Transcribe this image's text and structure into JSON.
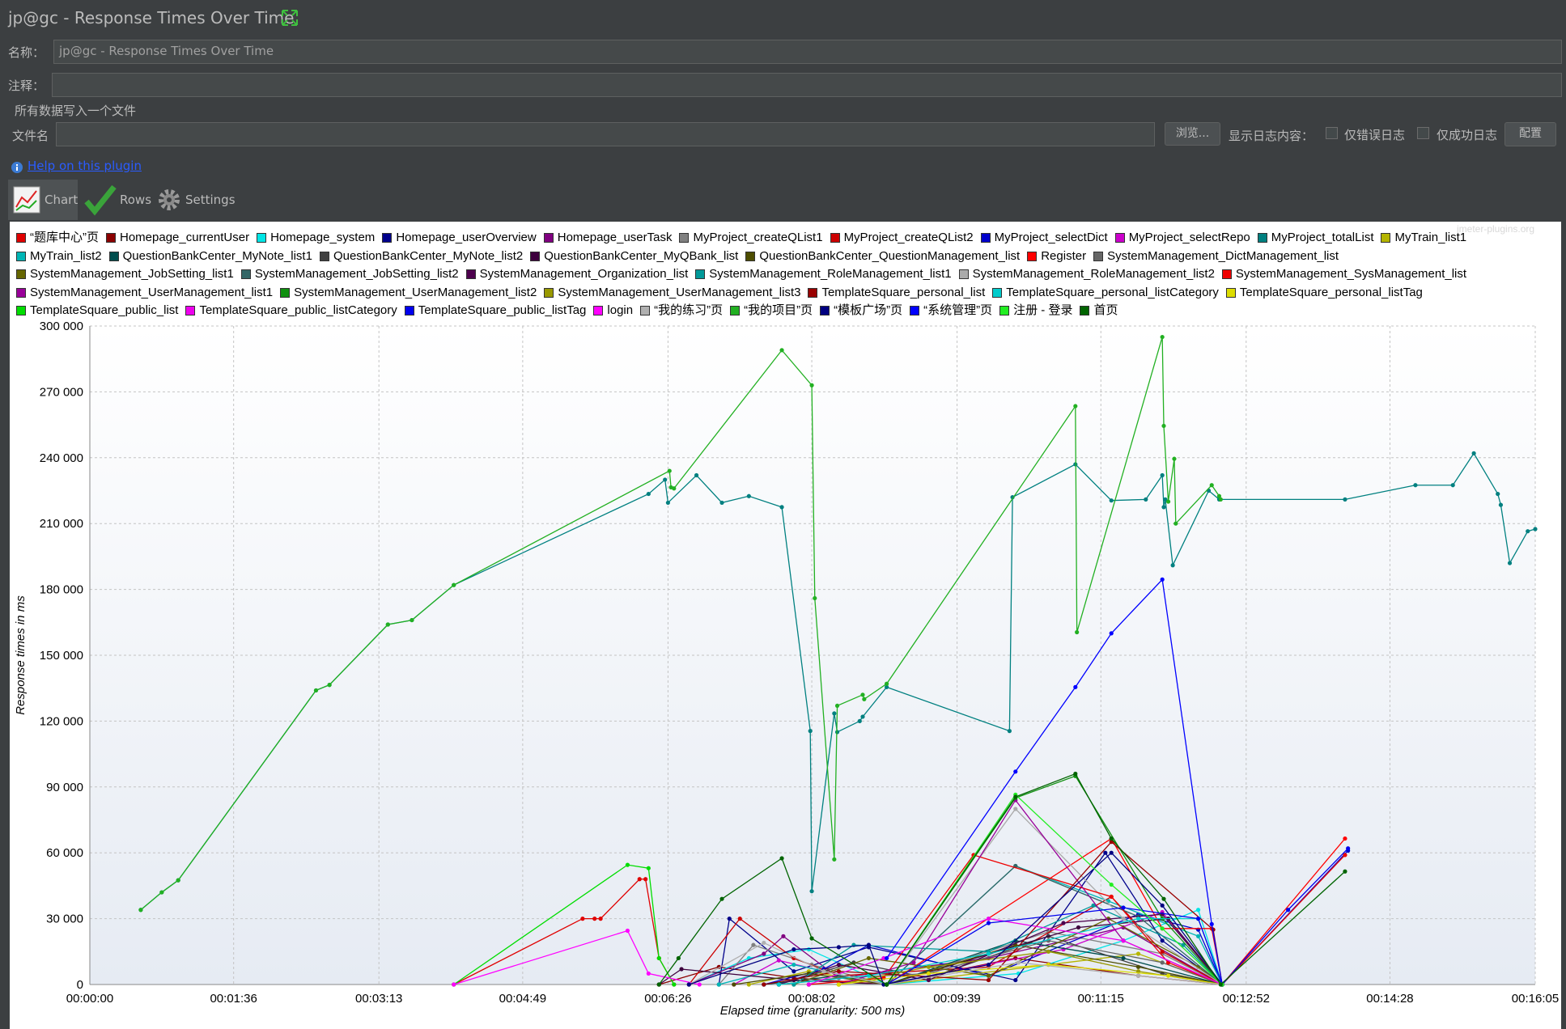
{
  "window": {
    "title": "jp@gc - Response Times Over Time",
    "name_label": "名称：",
    "name_value": "jp@gc - Response Times Over Time",
    "comment_label": "注释：",
    "file_group": "所有数据写入一个文件",
    "file_label": "文件名",
    "browse": "浏览...",
    "log_label": "显示日志内容：",
    "errors_only": "仅错误日志",
    "success_only": "仅成功日志",
    "configure": "配置",
    "help": "Help on this plugin",
    "tabs": [
      "Chart",
      "Rows",
      "Settings"
    ]
  },
  "chart_data": {
    "type": "line",
    "watermark": "jmeter-plugins.org",
    "x_label": "Elapsed time (granularity: 500 ms)",
    "y_label": "Response times in ms",
    "grid": true,
    "xlim": [
      0,
      965
    ],
    "xticks": [
      {
        "value": 0,
        "label": "00:00:00"
      },
      {
        "value": 96,
        "label": "00:01:36"
      },
      {
        "value": 193,
        "label": "00:03:13"
      },
      {
        "value": 289,
        "label": "00:04:49"
      },
      {
        "value": 386,
        "label": "00:06:26"
      },
      {
        "value": 482,
        "label": "00:08:02"
      },
      {
        "value": 579,
        "label": "00:09:39"
      },
      {
        "value": 675,
        "label": "00:11:15"
      },
      {
        "value": 772,
        "label": "00:12:52"
      },
      {
        "value": 868,
        "label": "00:14:28"
      },
      {
        "value": 965,
        "label": "00:16:05"
      }
    ],
    "ylim": [
      0,
      300000
    ],
    "yticks": [
      0,
      {
        "value": 30000,
        "label": "30 000"
      },
      {
        "value": 60000,
        "label": "60 000"
      },
      {
        "value": 90000,
        "label": "90 000"
      },
      {
        "value": 120000,
        "label": "120 000"
      },
      {
        "value": 150000,
        "label": "150 000"
      },
      {
        "value": 180000,
        "label": "180 000"
      },
      {
        "value": 210000,
        "label": "210 000"
      },
      {
        "value": 240000,
        "label": "240 000"
      },
      {
        "value": 270000,
        "label": "270 000"
      },
      {
        "value": 300000,
        "label": "300 000"
      }
    ],
    "series": [
      {
        "name": "“题库中心”页",
        "color": "#e00000",
        "x": [
          243,
          329,
          337,
          341,
          367,
          371,
          380,
          390
        ],
        "values": [
          0,
          30000,
          30000,
          30000,
          48000,
          48000,
          12000,
          0
        ]
      },
      {
        "name": "Homepage_currentUser",
        "color": "#8b0000",
        "x": [
          380,
          420,
          470,
          532,
          618,
          700,
          756
        ],
        "values": [
          0,
          8000,
          3000,
          0,
          12000,
          4000,
          0
        ]
      },
      {
        "name": "Homepage_system",
        "color": "#00e5e5",
        "x": [
          400,
          440,
          480,
          532,
          620,
          690,
          740,
          756
        ],
        "values": [
          0,
          12000,
          16000,
          0,
          5000,
          20000,
          34000,
          0
        ]
      },
      {
        "name": "Homepage_userOverview",
        "color": "#00008b",
        "x": [
          420,
          427,
          470,
          520,
          618,
          678,
          716,
          756
        ],
        "values": [
          0,
          30000,
          6000,
          17000,
          2000,
          60000,
          20000,
          0
        ]
      },
      {
        "name": "Homepage_userTask",
        "color": "#800080",
        "x": [
          400,
          450,
          463,
          500,
          600,
          690,
          756
        ],
        "values": [
          0,
          14000,
          22000,
          3000,
          12000,
          26000,
          0
        ]
      },
      {
        "name": "MyProject_createQList1",
        "color": "#808080",
        "x": [
          420,
          443,
          482,
          532,
          640,
          716,
          756
        ],
        "values": [
          0,
          18000,
          9000,
          0,
          24000,
          14000,
          0
        ]
      },
      {
        "name": "MyProject_createQList2",
        "color": "#cc0000",
        "x": [
          400,
          434,
          470,
          500,
          600,
          682,
          716,
          756
        ],
        "values": [
          0,
          30000,
          12000,
          4000,
          8000,
          40000,
          15000,
          0
        ]
      },
      {
        "name": "MyProject_selectDict",
        "color": "#0000cc",
        "x": [
          450,
          490,
          520,
          600,
          700,
          740,
          756,
          840
        ],
        "values": [
          0,
          7000,
          18000,
          4000,
          32000,
          25000,
          0,
          61000
        ]
      },
      {
        "name": "MyProject_selectRepo",
        "color": "#cc00cc",
        "x": [
          430,
          460,
          490,
          532,
          650,
          716,
          756
        ],
        "values": [
          0,
          11000,
          6000,
          0,
          16000,
          33000,
          0
        ]
      },
      {
        "name": "MyProject_totalList",
        "color": "#008080",
        "x": [
          34,
          48,
          59,
          151,
          160,
          199,
          215,
          243,
          373,
          384,
          386,
          405,
          422,
          440,
          462,
          481,
          482,
          497,
          499,
          514,
          516,
          532,
          614,
          616,
          658,
          682,
          705,
          716,
          717,
          718,
          723,
          747,
          754,
          838,
          885,
          910,
          924,
          940,
          942,
          948,
          960,
          965
        ],
        "values": [
          34000,
          42000,
          47500,
          134000,
          136500,
          164000,
          166000,
          182000,
          223500,
          230000,
          219500,
          232000,
          219500,
          222500,
          217500,
          115500,
          42500,
          123500,
          115000,
          120000,
          122000,
          135500,
          115500,
          222000,
          237000,
          220500,
          221000,
          232000,
          217500,
          221000,
          191000,
          225000,
          221000,
          221000,
          227500,
          227500,
          242000,
          223500,
          218500,
          192000,
          206500,
          207500
        ]
      },
      {
        "name": "MyTrain_list1",
        "color": "#b5b500",
        "x": [
          440,
          480,
          532,
          640,
          700,
          756
        ],
        "values": [
          0,
          6000,
          0,
          9000,
          14000,
          0
        ]
      },
      {
        "name": "MyTrain_list2",
        "color": "#00b5b5",
        "x": [
          420,
          470,
          532,
          618,
          680,
          740,
          756
        ],
        "values": [
          0,
          9000,
          0,
          54000,
          38000,
          22000,
          0
        ]
      },
      {
        "name": "QuestionBankCenter_MyNote_list1",
        "color": "#004d4d",
        "x": [
          450,
          500,
          532,
          618,
          690,
          756
        ],
        "values": [
          0,
          4000,
          0,
          20000,
          12000,
          0
        ]
      },
      {
        "name": "QuestionBankCenter_MyNote_list2",
        "color": "#404040",
        "x": [
          460,
          510,
          560,
          640,
          716,
          756
        ],
        "values": [
          0,
          10000,
          3000,
          22000,
          5000,
          0
        ]
      },
      {
        "name": "QuestionBankCenter_MyQBank_list",
        "color": "#3d003d",
        "x": [
          380,
          395,
          470,
          532,
          660,
          720,
          756
        ],
        "values": [
          0,
          7000,
          2000,
          0,
          26000,
          30000,
          0
        ]
      },
      {
        "name": "QuestionBankCenter_QuestionManagement_list",
        "color": "#4d4d00",
        "x": [
          430,
          480,
          532,
          618,
          700,
          756
        ],
        "values": [
          0,
          5000,
          0,
          18000,
          8000,
          0
        ]
      },
      {
        "name": "Register",
        "color": "#ff0000",
        "x": [
          532,
          682,
          716,
          749,
          756,
          838
        ],
        "values": [
          0,
          66500,
          25500,
          25500,
          0,
          66500
        ]
      },
      {
        "name": "SystemManagement_DictManagement_list",
        "color": "#666666",
        "x": [
          460,
          500,
          560,
          640,
          716,
          756
        ],
        "values": [
          0,
          3000,
          5000,
          20000,
          10000,
          0
        ]
      },
      {
        "name": "SystemManagement_JobSetting_list1",
        "color": "#666600",
        "x": [
          470,
          520,
          600,
          680,
          740,
          756
        ],
        "values": [
          0,
          12000,
          4000,
          30000,
          8000,
          0
        ]
      },
      {
        "name": "SystemManagement_JobSetting_list2",
        "color": "#336666",
        "x": [
          480,
          532,
          618,
          700,
          756
        ],
        "values": [
          0,
          0,
          54000,
          31000,
          0
        ]
      },
      {
        "name": "SystemManagement_Organization_list",
        "color": "#4d004d",
        "x": [
          460,
          500,
          560,
          650,
          716,
          756
        ],
        "values": [
          0,
          9000,
          2000,
          28000,
          32000,
          0
        ]
      },
      {
        "name": "SystemManagement_RoleManagement_list1",
        "color": "#009999",
        "x": [
          470,
          510,
          600,
          670,
          730,
          756
        ],
        "values": [
          0,
          18000,
          15000,
          36000,
          18000,
          0
        ]
      },
      {
        "name": "SystemManagement_RoleManagement_list2",
        "color": "#aaaaaa",
        "x": [
          480,
          532,
          618,
          690,
          756
        ],
        "values": [
          0,
          0,
          80000,
          30000,
          0
        ]
      },
      {
        "name": "SystemManagement_SysManagement_list",
        "color": "#ee0000",
        "x": [
          480,
          530,
          590,
          682,
          720,
          756,
          838
        ],
        "values": [
          0,
          3000,
          59000,
          40000,
          10000,
          0,
          59000
        ]
      },
      {
        "name": "SystemManagement_UserManagement_list1",
        "color": "#990099",
        "x": [
          500,
          550,
          618,
          690,
          756
        ],
        "values": [
          0,
          10000,
          84000,
          20000,
          0
        ]
      },
      {
        "name": "SystemManagement_UserManagement_list2",
        "color": "#109010",
        "x": [
          532,
          618,
          658,
          716,
          756
        ],
        "values": [
          0,
          85000,
          95000,
          30000,
          0
        ]
      },
      {
        "name": "SystemManagement_UserManagement_list3",
        "color": "#999900",
        "x": [
          500,
          560,
          640,
          700,
          756
        ],
        "values": [
          0,
          8000,
          15000,
          6000,
          0
        ]
      },
      {
        "name": "TemplateSquare_personal_list",
        "color": "#990000",
        "x": [
          450,
          500,
          600,
          682,
          750,
          756
        ],
        "values": [
          0,
          6000,
          2000,
          65000,
          25000,
          0
        ]
      },
      {
        "name": "TemplateSquare_personal_listCategory",
        "color": "#00cccc",
        "x": [
          460,
          520,
          600,
          700,
          740,
          756
        ],
        "values": [
          0,
          4000,
          14000,
          30000,
          30000,
          0
        ]
      },
      {
        "name": "TemplateSquare_personal_listTag",
        "color": "#dddd00",
        "x": [
          500,
          560,
          640,
          720,
          756
        ],
        "values": [
          0,
          5000,
          9000,
          4000,
          0
        ]
      },
      {
        "name": "TemplateSquare_public_list",
        "color": "#00dd00",
        "x": [
          243,
          359,
          373,
          380,
          390
        ],
        "values": [
          0,
          54500,
          53000,
          12000,
          0
        ]
      },
      {
        "name": "TemplateSquare_public_listCategory",
        "color": "#ee00ee",
        "x": [
          480,
          530,
          600,
          690,
          756
        ],
        "values": [
          0,
          12000,
          30000,
          20000,
          0
        ]
      },
      {
        "name": "TemplateSquare_public_listTag",
        "color": "#0000ee",
        "x": [
          532,
          600,
          690,
          740,
          756,
          800,
          840
        ],
        "values": [
          0,
          28000,
          35000,
          30000,
          0,
          34000,
          62000
        ]
      },
      {
        "name": "login",
        "color": "#ff00ff",
        "x": [
          243,
          359,
          373,
          407
        ],
        "values": [
          0,
          24500,
          5000,
          0
        ]
      },
      {
        "name": "“我的练习”页",
        "color": "#b0b0b0",
        "x": [
          400,
          450,
          490,
          532,
          620,
          700,
          756
        ],
        "values": [
          0,
          19000,
          6000,
          0,
          10000,
          4000,
          0
        ]
      },
      {
        "name": "“我的项目”页",
        "color": "#22b022",
        "x": [
          34,
          48,
          59,
          151,
          160,
          199,
          215,
          243,
          387,
          388,
          390,
          462,
          482,
          484,
          497,
          499,
          516,
          517,
          532,
          658,
          659,
          716,
          717,
          720,
          724,
          725,
          749,
          754,
          755
        ],
        "values": [
          34000,
          42000,
          47500,
          134000,
          136500,
          164000,
          166000,
          182000,
          234000,
          226500,
          226000,
          289000,
          273000,
          176000,
          57000,
          127000,
          132000,
          130000,
          137000,
          263500,
          160500,
          295000,
          254500,
          220000,
          239500,
          210000,
          227500,
          222500,
          221000
        ]
      },
      {
        "name": "“模板广场”页",
        "color": "#000080",
        "x": [
          400,
          470,
          500,
          520,
          530,
          600,
          682,
          716,
          756
        ],
        "values": [
          0,
          16000,
          17000,
          18000,
          0,
          9000,
          60000,
          36000,
          0
        ]
      },
      {
        "name": "“系统管理”页",
        "color": "#0000ff",
        "x": [
          532,
          618,
          658,
          682,
          716,
          749,
          756
        ],
        "values": [
          12000,
          97000,
          135500,
          160000,
          184500,
          27500,
          0
        ]
      },
      {
        "name": "注册 - 登录",
        "color": "#22ee22",
        "x": [
          532,
          618,
          682,
          716,
          756
        ],
        "values": [
          0,
          86500,
          45500,
          25500,
          0
        ]
      },
      {
        "name": "首页",
        "color": "#006400",
        "x": [
          380,
          393,
          422,
          462,
          482,
          532,
          618,
          658,
          682,
          717,
          755,
          838
        ],
        "values": [
          0,
          12000,
          39000,
          57500,
          21000,
          0,
          85500,
          96000,
          66500,
          39000,
          0,
          51500
        ]
      }
    ]
  }
}
